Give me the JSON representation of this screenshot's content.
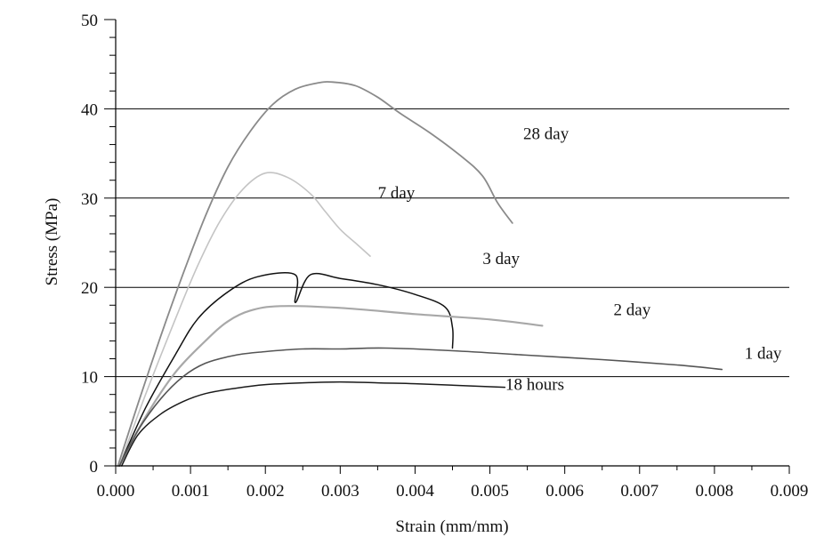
{
  "chart_data": {
    "type": "line",
    "title": "",
    "xlabel": "Strain (mm/mm)",
    "ylabel": "Stress (MPa)",
    "xlim": [
      0,
      0.009
    ],
    "ylim": [
      0,
      50
    ],
    "x_ticks": [
      "0.000",
      "0.001",
      "0.002",
      "0.003",
      "0.004",
      "0.005",
      "0.006",
      "0.007",
      "0.008",
      "0.009"
    ],
    "y_ticks": [
      "0",
      "10",
      "20",
      "30",
      "40",
      "50"
    ],
    "grid": "horizontal at 10, 20, 30, 40",
    "series": [
      {
        "name": "28 day",
        "color": "#8a8a8a",
        "x": [
          3e-05,
          0.0003,
          0.0006,
          0.0009,
          0.0012,
          0.0015,
          0.0018,
          0.0021,
          0.0024,
          0.0027,
          0.0029,
          0.0032,
          0.0035,
          0.0038,
          0.0042,
          0.0046,
          0.0049,
          0.0051,
          0.0053
        ],
        "y": [
          0,
          7,
          14.5,
          21.5,
          28,
          33.5,
          37.5,
          40.5,
          42.2,
          42.9,
          43,
          42.6,
          41.3,
          39.5,
          37.3,
          34.8,
          32.5,
          29.5,
          27.2
        ]
      },
      {
        "name": "7 day",
        "color": "#c4c4c4",
        "x": [
          5e-05,
          0.0004,
          0.0008,
          0.0011,
          0.0014,
          0.0017,
          0.002,
          0.0023,
          0.0026,
          0.0028,
          0.003,
          0.0032,
          0.0034
        ],
        "y": [
          0,
          8,
          16.5,
          22.5,
          27.5,
          31,
          32.8,
          32.3,
          30.5,
          28.5,
          26.5,
          25,
          23.5
        ]
      },
      {
        "name": "3 day",
        "color": "#111111",
        "x": [
          5e-05,
          0.0004,
          0.0008,
          0.0011,
          0.0015,
          0.0019,
          0.0024,
          0.0024,
          0.0026,
          0.003,
          0.0035,
          0.004,
          0.0044,
          0.0045,
          0.0045
        ],
        "y": [
          0,
          6.5,
          12.5,
          16.5,
          19.5,
          21.2,
          21.4,
          18.3,
          21.4,
          21,
          20.3,
          19.2,
          17.8,
          15.5,
          13.2
        ]
      },
      {
        "name": "2 day",
        "color": "#a8a8a8",
        "x": [
          5e-05,
          0.0004,
          0.0008,
          0.0012,
          0.0015,
          0.0018,
          0.0022,
          0.003,
          0.004,
          0.005,
          0.0057
        ],
        "y": [
          0,
          5.5,
          10.5,
          14,
          16.2,
          17.4,
          17.9,
          17.7,
          17,
          16.4,
          15.7
        ]
      },
      {
        "name": "1 day",
        "color": "#555555",
        "x": [
          5e-05,
          0.0003,
          0.0006,
          0.0009,
          0.0012,
          0.0016,
          0.002,
          0.0025,
          0.003,
          0.0036,
          0.0045,
          0.0055,
          0.0065,
          0.0075,
          0.0081
        ],
        "y": [
          0,
          4,
          7.5,
          10,
          11.5,
          12.4,
          12.8,
          13.1,
          13.1,
          13.2,
          12.9,
          12.4,
          11.9,
          11.3,
          10.8
        ]
      },
      {
        "name": "18 hours",
        "color": "#1a1a1a",
        "x": [
          8e-05,
          0.0003,
          0.0006,
          0.0009,
          0.0012,
          0.0016,
          0.002,
          0.0025,
          0.003,
          0.0035,
          0.004,
          0.0046,
          0.0052
        ],
        "y": [
          0,
          3.5,
          5.8,
          7.2,
          8.1,
          8.7,
          9.1,
          9.3,
          9.4,
          9.3,
          9.2,
          9,
          8.8
        ]
      }
    ],
    "labels": [
      {
        "text": "28 day",
        "x": 0.00575,
        "y": 37.2
      },
      {
        "text": "7 day",
        "x": 0.00375,
        "y": 30.6
      },
      {
        "text": "3 day",
        "x": 0.00515,
        "y": 23.2
      },
      {
        "text": "2 day",
        "x": 0.0069,
        "y": 17.5
      },
      {
        "text": "1 day",
        "x": 0.00865,
        "y": 12.6
      },
      {
        "text": "18 hours",
        "x": 0.0056,
        "y": 9.1
      }
    ]
  }
}
